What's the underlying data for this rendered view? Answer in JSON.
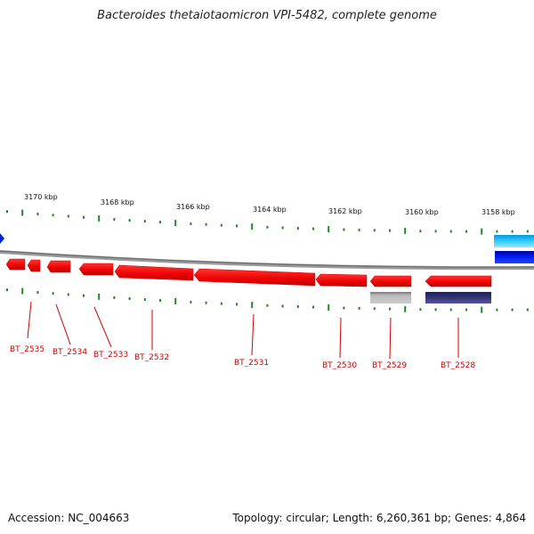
{
  "title": "Bacteroides thetaiotaomicron VPI-5482, complete genome",
  "footer": {
    "accession": "Accession: NC_004663",
    "summary": "Topology: circular; Length: 6,260,361 bp; Genes: 4,864"
  },
  "scale_ticks": [
    {
      "label": "3170 kbp",
      "kbp": 3170
    },
    {
      "label": "3168 kbp",
      "kbp": 3168
    },
    {
      "label": "3166 kbp",
      "kbp": 3166
    },
    {
      "label": "3164 kbp",
      "kbp": 3164
    },
    {
      "label": "3162 kbp",
      "kbp": 3162
    },
    {
      "label": "3160 kbp",
      "kbp": 3160
    },
    {
      "label": "3158 kbp",
      "kbp": 3158
    }
  ],
  "genes": [
    {
      "name": "BT_2535",
      "strand": "reverse"
    },
    {
      "name": "BT_2534",
      "strand": "reverse"
    },
    {
      "name": "BT_2533",
      "strand": "reverse"
    },
    {
      "name": "BT_2532",
      "strand": "reverse"
    },
    {
      "name": "BT_2531",
      "strand": "reverse"
    },
    {
      "name": "BT_2530",
      "strand": "reverse"
    },
    {
      "name": "BT_2529",
      "strand": "reverse"
    },
    {
      "name": "BT_2528",
      "strand": "reverse"
    }
  ],
  "colors": {
    "gene": "#ee1111",
    "backbone": "#888888",
    "tick": "#228822",
    "label": "#cc0000",
    "feature_grey": "#aaaaaa",
    "feature_navy": "#333377",
    "feature_cyan": "#22bbee",
    "feature_blue": "#0022dd"
  }
}
